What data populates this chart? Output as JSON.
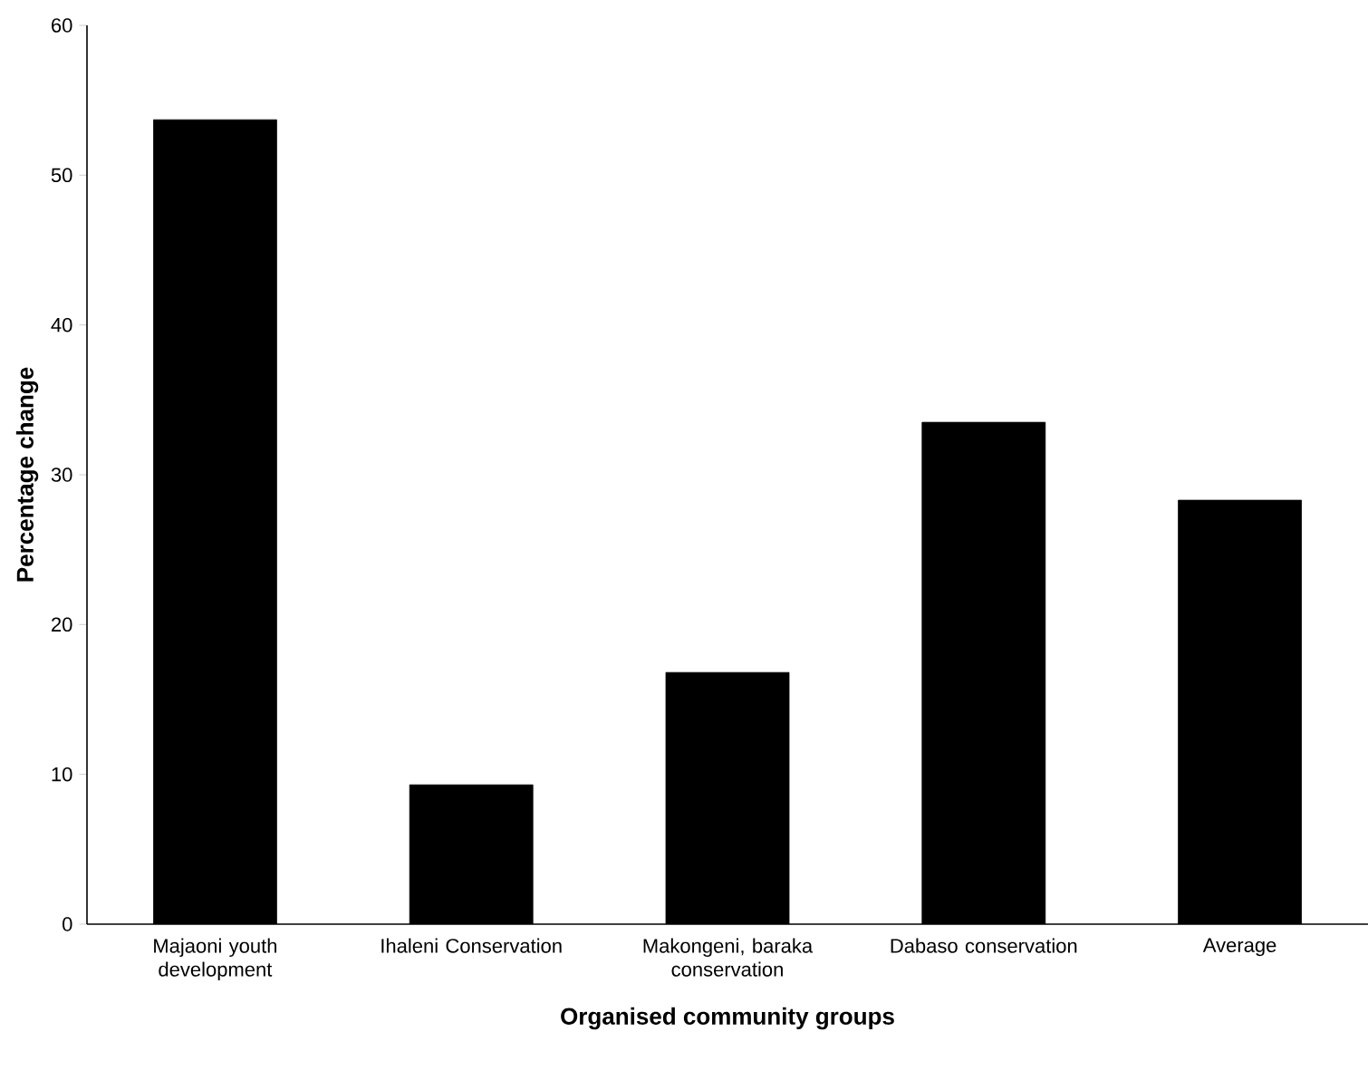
{
  "chart_data": {
    "type": "bar",
    "categories": [
      "Majaoni youth development",
      "Ihaleni Conservation",
      "Makongeni, baraka conservation",
      "Dabaso conservation",
      "Average"
    ],
    "values": [
      53.7,
      9.3,
      16.8,
      33.5,
      28.3
    ],
    "color": "#000000",
    "xlabel": "Organised community groups",
    "ylabel": "Percentage change",
    "ylim": [
      0,
      60
    ],
    "yticks": [
      0,
      10,
      20,
      30,
      40,
      50,
      60
    ],
    "grid": false
  }
}
